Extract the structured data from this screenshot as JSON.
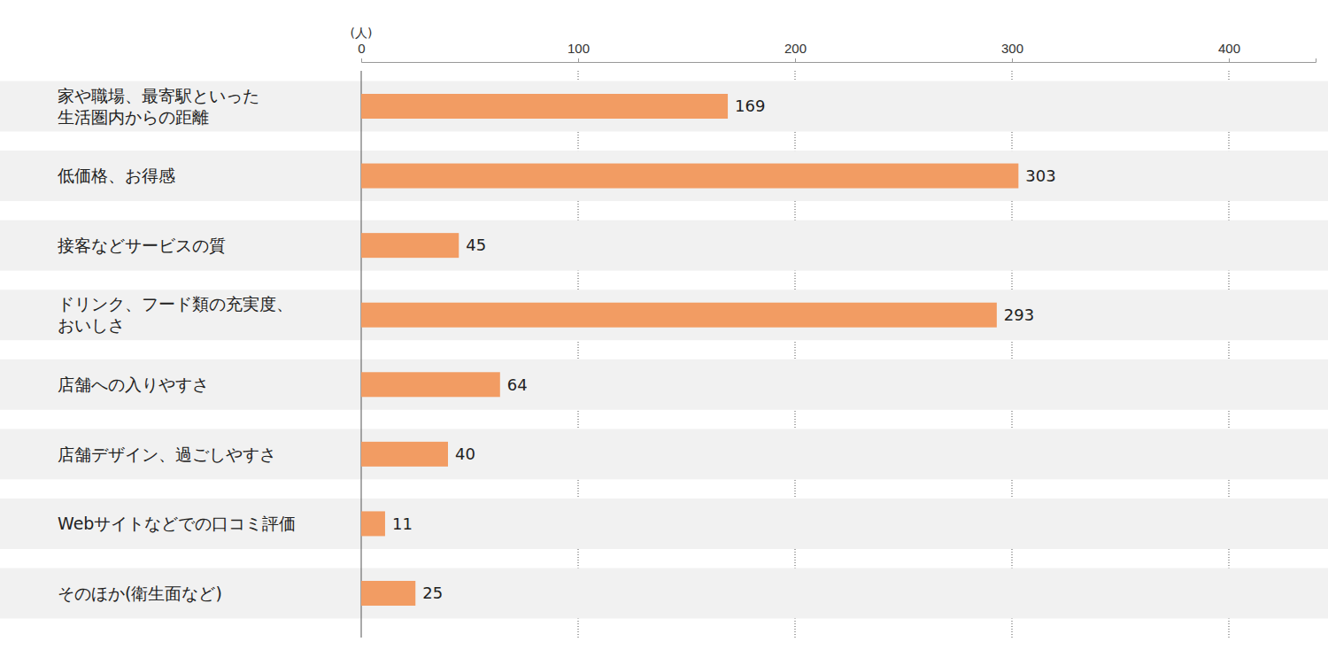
{
  "chart_data": {
    "type": "bar",
    "orientation": "horizontal",
    "x_label": "(人)",
    "categories": [
      "家や職場、最寄駅といった\n生活圏内からの距離",
      "低価格、お得感",
      "接客などサービスの質",
      "ドリンク、フード類の充実度、\nおいしさ",
      "店舗への入りやすさ",
      "店舗デザイン、過ごしやすさ",
      "Webサイトなどでの口コミ評価",
      "そのほか(衛生面など)"
    ],
    "values": [
      169,
      303,
      45,
      293,
      64,
      40,
      11,
      25
    ],
    "color": "#f29c63",
    "xlim": [
      0,
      440
    ],
    "xticks": [
      0,
      100,
      200,
      300,
      400
    ],
    "grid": true,
    "data_labels": true
  }
}
